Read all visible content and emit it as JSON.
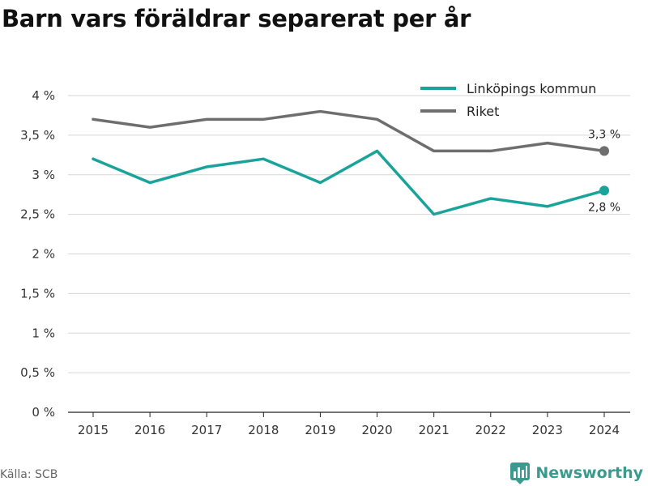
{
  "page": {
    "title": "Barn vars föräldrar separerat per år",
    "source": "Källa: SCB",
    "brand": "Newsworthy",
    "brand_icon": "bar-chart-logo-icon"
  },
  "chart_data": {
    "type": "line",
    "title": "Barn vars föräldrar separerat per år",
    "x": [
      "2015",
      "2016",
      "2017",
      "2018",
      "2019",
      "2020",
      "2021",
      "2022",
      "2023",
      "2024"
    ],
    "ylim": [
      0,
      4
    ],
    "yticks": [
      0,
      0.5,
      1,
      1.5,
      2,
      2.5,
      3,
      3.5,
      4
    ],
    "ytick_labels": [
      "0 %",
      "0,5 %",
      "1 %",
      "1,5 %",
      "2 %",
      "2,5 %",
      "3 %",
      "3,5 %",
      "4 %"
    ],
    "grid": true,
    "legend": "top-right",
    "series": [
      {
        "name": "Linköpings kommun",
        "color": "#1aa39a",
        "values": [
          3.2,
          2.9,
          3.1,
          3.2,
          2.9,
          3.3,
          2.5,
          2.7,
          2.6,
          2.8
        ],
        "end_label": "2,8 %"
      },
      {
        "name": "Riket",
        "color": "#6e6e6e",
        "values": [
          3.7,
          3.6,
          3.7,
          3.7,
          3.8,
          3.7,
          3.3,
          3.3,
          3.4,
          3.3
        ],
        "end_label": "3,3 %"
      }
    ]
  }
}
